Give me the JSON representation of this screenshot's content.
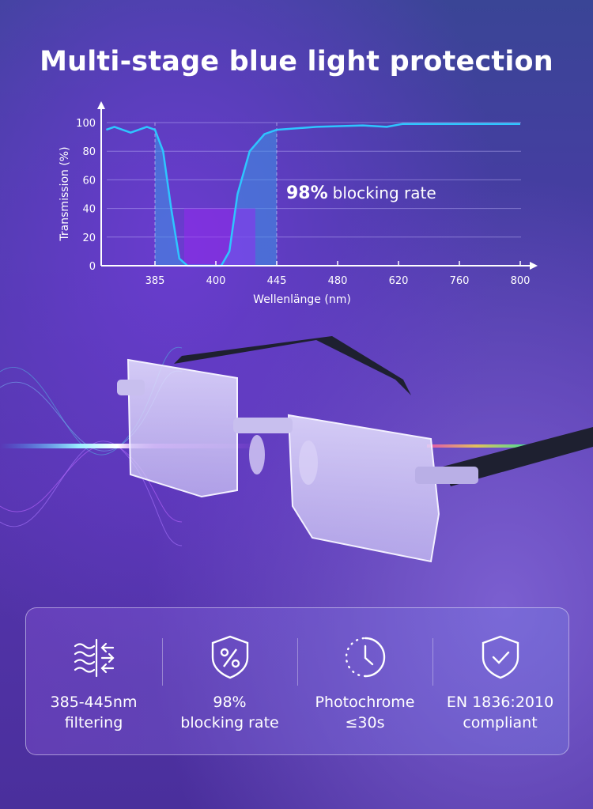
{
  "title": "Multi-stage blue light protection",
  "chart_data": {
    "type": "line",
    "ylabel": "Transmission (%)",
    "xlabel": "Wellenlänge (nm)",
    "x_tick_labels": [
      "385",
      "400",
      "445",
      "480",
      "620",
      "760",
      "800"
    ],
    "y_tick_labels": [
      "0",
      "20",
      "40",
      "60",
      "80",
      "100"
    ],
    "ylim": [
      0,
      100
    ],
    "grid": true,
    "highlight_band": [
      385,
      445
    ],
    "annotation_bold": "98%",
    "annotation_text": "blocking rate",
    "series": [
      {
        "color": "#2ec5ff",
        "points": [
          [
            373,
            95
          ],
          [
            375,
            97
          ],
          [
            379,
            93
          ],
          [
            383,
            97
          ],
          [
            385,
            95
          ],
          [
            387,
            80
          ],
          [
            389,
            40
          ],
          [
            391,
            5
          ],
          [
            393,
            0
          ],
          [
            404,
            0
          ],
          [
            410,
            10
          ],
          [
            416,
            50
          ],
          [
            425,
            80
          ],
          [
            436,
            92
          ],
          [
            445,
            95
          ],
          [
            468,
            97
          ],
          [
            538,
            98
          ],
          [
            593,
            97
          ],
          [
            629,
            99
          ],
          [
            800,
            99
          ]
        ]
      }
    ]
  },
  "features": [
    {
      "icon": "wave-filter-icon",
      "line1": "385-445nm",
      "line2": "filtering"
    },
    {
      "icon": "shield-percent-icon",
      "line1": "98%",
      "line2": "blocking rate"
    },
    {
      "icon": "clock-icon",
      "line1": "Photochrome",
      "line2": "≤30s"
    },
    {
      "icon": "shield-check-icon",
      "line1": "EN 1836:2010",
      "line2": "compliant"
    }
  ]
}
